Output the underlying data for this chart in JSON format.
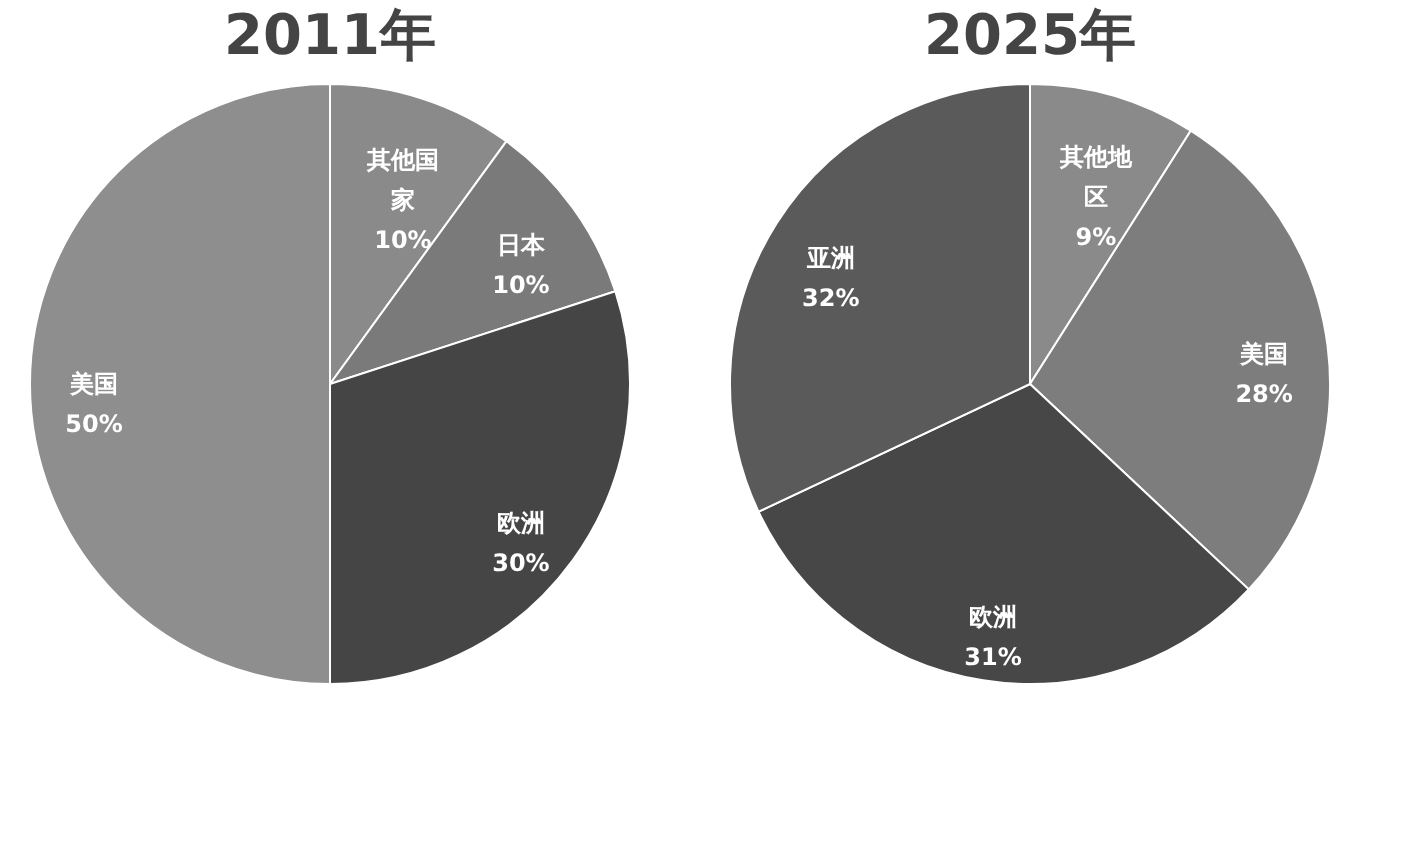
{
  "chart_data": [
    {
      "type": "pie",
      "title": "2011年",
      "categories": [
        "其他国家",
        "日本",
        "欧洲",
        "美国"
      ],
      "values": [
        10,
        10,
        30,
        50
      ],
      "value_labels": [
        "10%",
        "10%",
        "30%",
        "50%"
      ],
      "colors": [
        "#8a8a8a",
        "#7a7a7a",
        "#454545",
        "#8e8e8e"
      ],
      "legend": false
    },
    {
      "type": "pie",
      "title": "2025年",
      "categories": [
        "其他地区",
        "美国",
        "欧洲",
        "亚洲"
      ],
      "values": [
        9,
        28,
        31,
        32
      ],
      "value_labels": [
        "9%",
        "28%",
        "31%",
        "32%"
      ],
      "colors": [
        "#8a8a8a",
        "#7d7d7d",
        "#474747",
        "#5a5a5a"
      ],
      "legend": false
    }
  ]
}
